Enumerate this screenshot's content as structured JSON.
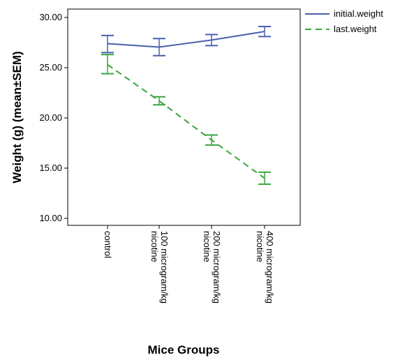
{
  "chart_data": {
    "type": "line",
    "title": "",
    "xlabel": "Mice Groups",
    "ylabel": "Weight (g) (mean±SEM)",
    "ylim": [
      10,
      30
    ],
    "yticks": [
      "10.00",
      "15.00",
      "20.00",
      "25.00",
      "30.00"
    ],
    "categories": [
      [
        "control"
      ],
      [
        "100 microgram/kg",
        "nicotine"
      ],
      [
        "200 microgram/kg",
        "nicotine"
      ],
      [
        "400 microgram/kg",
        "nicotine"
      ]
    ],
    "legend_position": "top-right outside",
    "grid": false,
    "series": [
      {
        "name": "initial.weight",
        "color": "#4a5fad",
        "style": "solid",
        "values": [
          27.4,
          27.05,
          27.75,
          28.6
        ],
        "err_low": [
          26.5,
          26.2,
          27.2,
          28.1
        ],
        "err_high": [
          28.2,
          27.9,
          28.3,
          29.1
        ]
      },
      {
        "name": "last.weight",
        "color": "#3aa63a",
        "style": "dashed",
        "values": [
          25.3,
          21.7,
          17.8,
          14.0
        ],
        "err_low": [
          24.4,
          21.3,
          17.3,
          13.4
        ],
        "err_high": [
          26.3,
          22.1,
          18.3,
          14.6
        ]
      }
    ]
  }
}
